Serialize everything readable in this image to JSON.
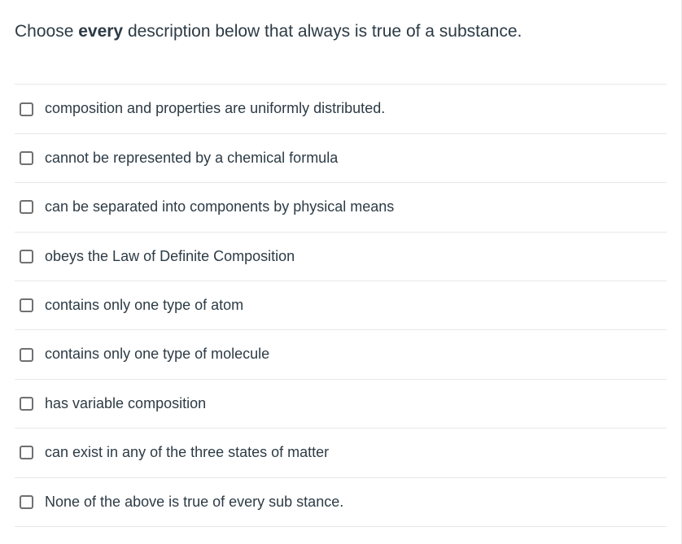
{
  "prompt": {
    "prefix": "Choose ",
    "emphasis": "every",
    "suffix": " description below that always is true of a substance."
  },
  "options": [
    {
      "id": "opt-1",
      "label": "composition and properties are uniformly distributed."
    },
    {
      "id": "opt-2",
      "label": "cannot be represented by a chemical formula"
    },
    {
      "id": "opt-3",
      "label": "can be separated into components by physical means"
    },
    {
      "id": "opt-4",
      "label": "obeys the Law of Definite Composition"
    },
    {
      "id": "opt-5",
      "label": "contains only one type of atom"
    },
    {
      "id": "opt-6",
      "label": "contains only one type of molecule"
    },
    {
      "id": "opt-7",
      "label": "has variable composition"
    },
    {
      "id": "opt-8",
      "label": "can exist in any of the three states of matter"
    },
    {
      "id": "opt-9",
      "label": "None of the above is true of every sub stance."
    }
  ],
  "styling": {
    "text_color": "#2d3b45",
    "border_color": "#e8e8e8",
    "checkbox_border": "#707070",
    "background": "#ffffff",
    "prompt_fontsize": 21,
    "option_fontsize": 18
  }
}
